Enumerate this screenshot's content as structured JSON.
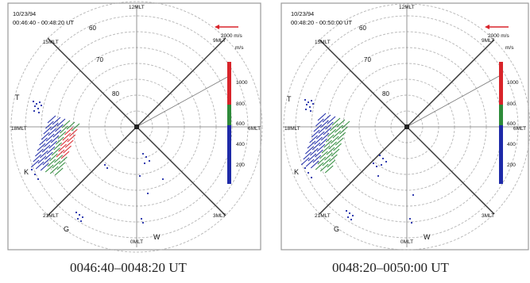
{
  "panels": [
    {
      "date": "10/23/94",
      "time_range": "00:46:40 - 00:48:20 UT",
      "caption": "0046:40–0048:20 UT",
      "scale_vector": "2000 m/s",
      "colorbar_unit": "m/s",
      "colorbar_ticks": [
        "1000",
        "800",
        "600",
        "400",
        "200"
      ],
      "lat_labels": [
        "80",
        "70",
        "60"
      ],
      "mlt_labels": {
        "top": "12MLT",
        "top_left": "15MLT",
        "top_right": "9MLT",
        "left": "18MLT",
        "right": "6MLT",
        "bottom_left": "21MLT",
        "bottom_right": "3MLT",
        "bottom": "0MLT"
      },
      "station_labels": [
        "T",
        "K",
        "G",
        "W"
      ]
    },
    {
      "date": "10/23/94",
      "time_range": "00:48:20 - 00:50:00 UT",
      "caption": "0048:20–0050:00 UT",
      "scale_vector": "2000 m/s",
      "colorbar_unit": "m/s",
      "colorbar_ticks": [
        "1000",
        "800",
        "600",
        "400",
        "200"
      ],
      "lat_labels": [
        "80",
        "70",
        "60"
      ],
      "mlt_labels": {
        "top": "12MLT",
        "top_left": "15MLT",
        "top_right": "9MLT",
        "left": "18MLT",
        "right": "6MLT",
        "bottom_left": "21MLT",
        "bottom_right": "3MLT",
        "bottom": "0MLT"
      },
      "station_labels": [
        "T",
        "K",
        "G",
        "W"
      ]
    }
  ],
  "colors": {
    "frame": "#9a9a9a",
    "grid": "#b5b5b5",
    "spoke": "#3a3a3a",
    "vector_blue": "#1e2aa8",
    "vector_green": "#2e8a3a",
    "vector_red": "#d8242a",
    "scale_arrow": "#d8242a"
  }
}
